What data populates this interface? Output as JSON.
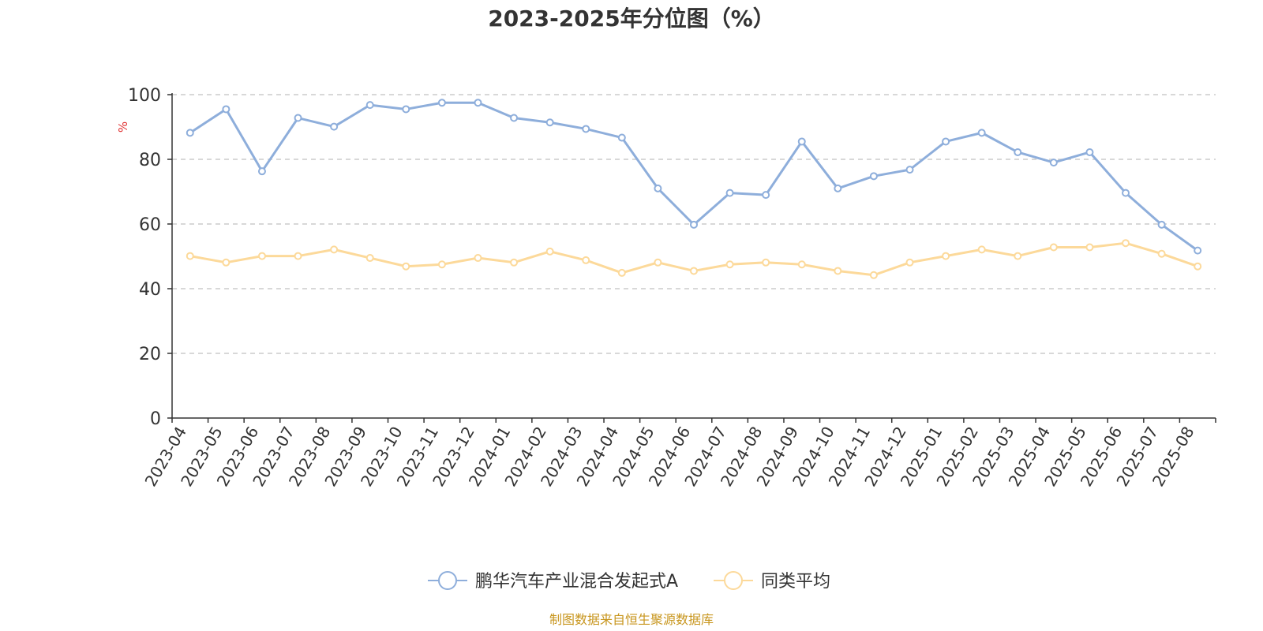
{
  "chart_data": {
    "type": "line",
    "title": "2023-2025年分位图（%）",
    "ylabel": "%",
    "ylim": [
      0,
      100
    ],
    "yticks": [
      0,
      20,
      40,
      60,
      80,
      100
    ],
    "grid": true,
    "legend_position": "bottom-center",
    "categories": [
      "2023-04",
      "2023-05",
      "2023-06",
      "2023-07",
      "2023-08",
      "2023-09",
      "2023-10",
      "2023-11",
      "2023-12",
      "2024-01",
      "2024-02",
      "2024-03",
      "2024-04",
      "2024-05",
      "2024-06",
      "2024-07",
      "2024-08",
      "2024-09",
      "2024-10",
      "2024-11",
      "2024-12",
      "2025-01",
      "2025-02",
      "2025-03",
      "2025-04",
      "2025-05",
      "2025-06",
      "2025-07",
      "2025-08"
    ],
    "series": [
      {
        "name": "鹏华汽车产业混合发起式A",
        "color": "#8eaedb",
        "values": [
          88.2,
          95.5,
          76.3,
          92.8,
          90.1,
          96.8,
          95.5,
          97.5,
          97.5,
          92.8,
          91.4,
          89.4,
          86.7,
          71.0,
          59.8,
          69.6,
          69.0,
          85.5,
          71.0,
          74.8,
          76.8,
          85.5,
          88.2,
          82.2,
          79.0,
          82.2,
          69.6,
          59.8,
          51.8
        ]
      },
      {
        "name": "同类平均",
        "color": "#fcd99a",
        "values": [
          50.1,
          48.1,
          50.1,
          50.1,
          52.1,
          49.5,
          46.9,
          47.5,
          49.5,
          48.1,
          51.5,
          48.8,
          44.9,
          48.1,
          45.5,
          47.5,
          48.1,
          47.5,
          45.5,
          44.2,
          48.1,
          50.1,
          52.1,
          50.1,
          52.8,
          52.8,
          54.1,
          50.8,
          46.9
        ]
      }
    ]
  },
  "source_text": "制图数据来自恒生聚源数据库",
  "colors": {
    "axis": "#333333",
    "grid": "#cccccc",
    "ylabel": "#e03030",
    "source": "#c8961e"
  }
}
